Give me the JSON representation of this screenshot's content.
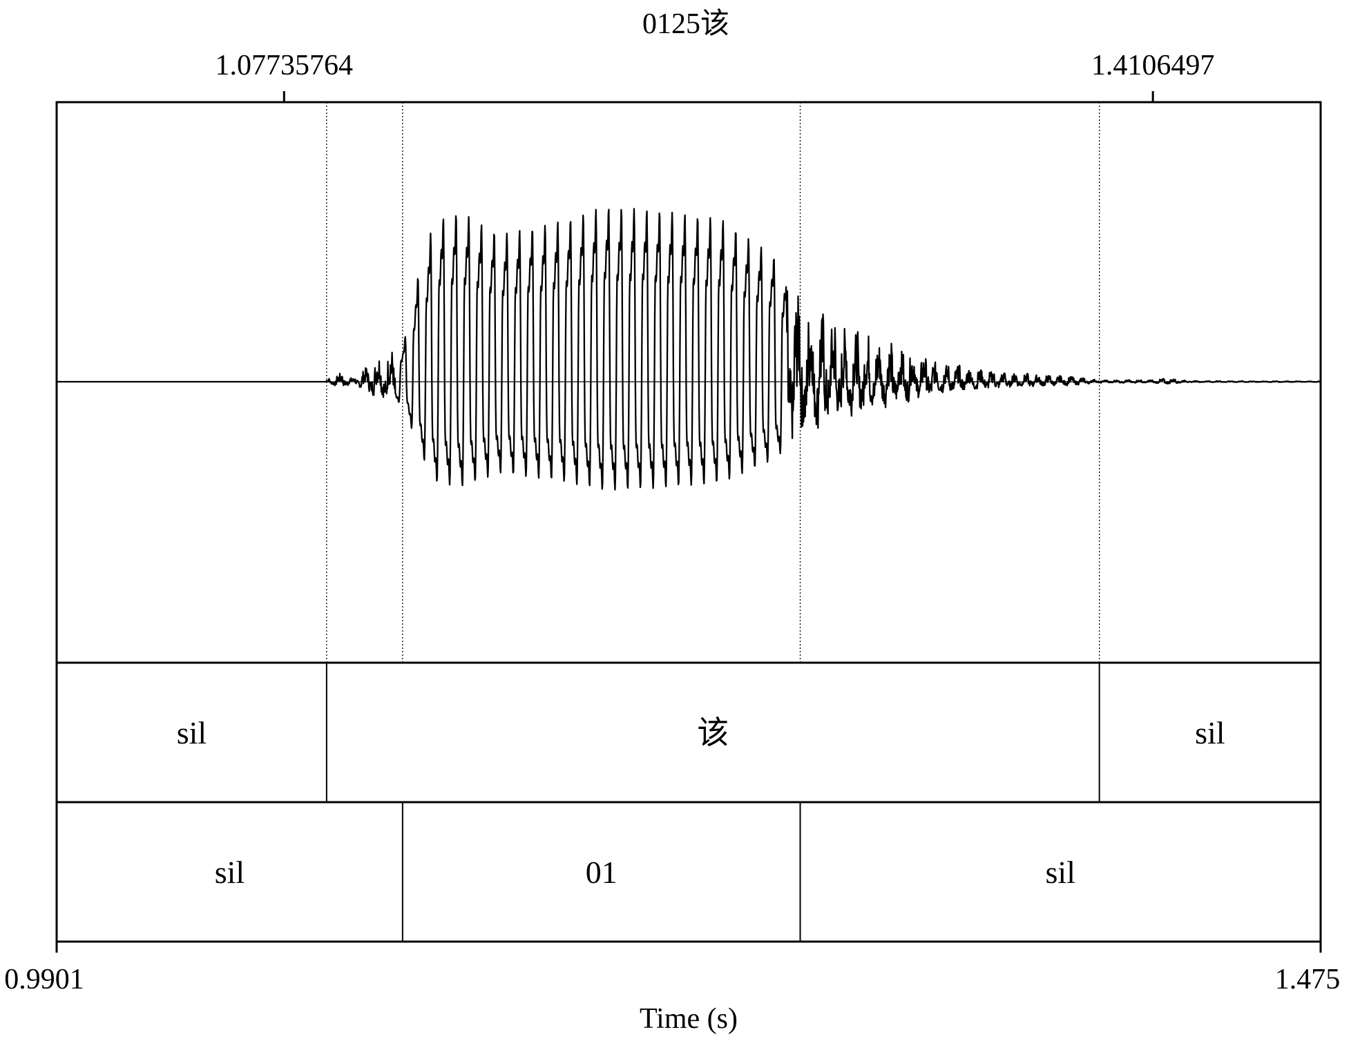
{
  "chart_data": {
    "type": "line",
    "title": "0125该",
    "xlabel": "Time (s)",
    "ylabel": "",
    "xlim": [
      0.9901,
      1.475
    ],
    "xlim_labels": [
      "0.9901",
      "1.475"
    ],
    "top_markers": [
      {
        "value": 1.07735764,
        "label": "1.07735764"
      },
      {
        "value": 1.4106497,
        "label": "1.4106497"
      }
    ],
    "boundaries_dotted": [
      1.09367,
      1.12282,
      1.27535,
      1.39012
    ],
    "grid": false,
    "legend": "none",
    "series": [
      {
        "x_start": 1.0935,
        "x_end": 1.475,
        "envelope": [
          [
            1.0935,
            0.01
          ],
          [
            1.099,
            0.05
          ],
          [
            1.104,
            0.02
          ],
          [
            1.113,
            0.14
          ],
          [
            1.123,
            0.2
          ],
          [
            1.129,
            0.62
          ],
          [
            1.135,
            0.92
          ],
          [
            1.145,
            0.97
          ],
          [
            1.16,
            0.84
          ],
          [
            1.185,
            0.92
          ],
          [
            1.2,
            1.0
          ],
          [
            1.22,
            0.98
          ],
          [
            1.245,
            0.93
          ],
          [
            1.265,
            0.72
          ],
          [
            1.277,
            0.46
          ],
          [
            1.295,
            0.29
          ],
          [
            1.315,
            0.18
          ],
          [
            1.33,
            0.1
          ],
          [
            1.355,
            0.05
          ],
          [
            1.38,
            0.03
          ],
          [
            1.39,
            0.01
          ],
          [
            1.411,
            0.01
          ],
          [
            1.416,
            0.02
          ],
          [
            1.425,
            0.005
          ],
          [
            1.475,
            0.003
          ]
        ]
      }
    ],
    "tiers": [
      {
        "name": "",
        "intervals": [
          {
            "start": 0.9901,
            "end": 1.09367,
            "text": "sil"
          },
          {
            "start": 1.09367,
            "end": 1.39012,
            "text": "该"
          },
          {
            "start": 1.39012,
            "end": 1.475,
            "text": "sil"
          }
        ]
      },
      {
        "name": "",
        "intervals": [
          {
            "start": 0.9901,
            "end": 1.12282,
            "text": "sil"
          },
          {
            "start": 1.12282,
            "end": 1.27535,
            "text": "01"
          },
          {
            "start": 1.27535,
            "end": 1.475,
            "text": "sil"
          }
        ]
      }
    ]
  }
}
